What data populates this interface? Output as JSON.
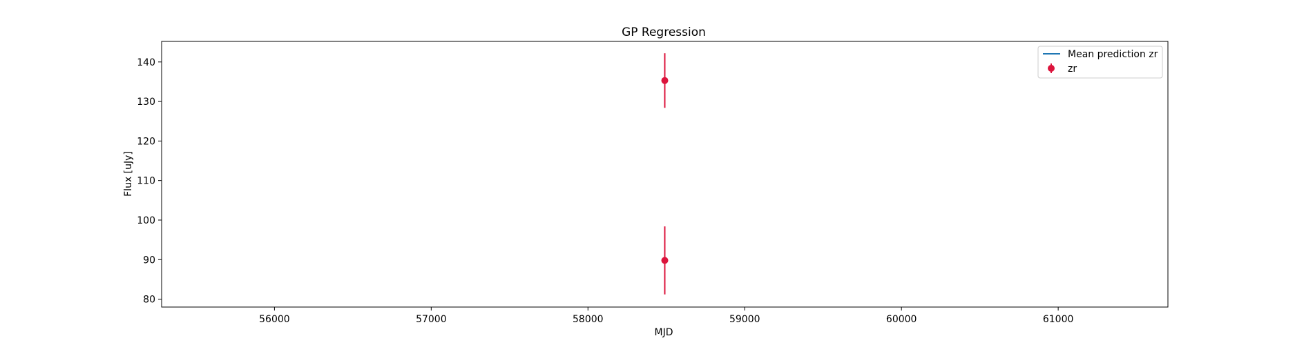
{
  "chart_data": {
    "type": "scatter",
    "title": "GP Regression",
    "xlabel": "MJD",
    "ylabel": "Flux [uJy]",
    "xlim": [
      55280,
      61700
    ],
    "ylim": [
      78,
      145.2
    ],
    "xticks": [
      56000,
      57000,
      58000,
      59000,
      60000,
      61000
    ],
    "yticks": [
      80,
      90,
      100,
      110,
      120,
      130,
      140
    ],
    "grid": false,
    "legend_position": "top-right",
    "series": [
      {
        "name": "Mean prediction zr",
        "kind": "line",
        "color": "#1f77b4",
        "x": [],
        "y": []
      },
      {
        "name": "zr",
        "kind": "errorbar",
        "color": "#dc143c",
        "points": [
          {
            "x": 58490,
            "y": 135.3,
            "yerr": 6.9
          },
          {
            "x": 58490,
            "y": 89.8,
            "yerr": 8.6
          }
        ]
      }
    ]
  }
}
